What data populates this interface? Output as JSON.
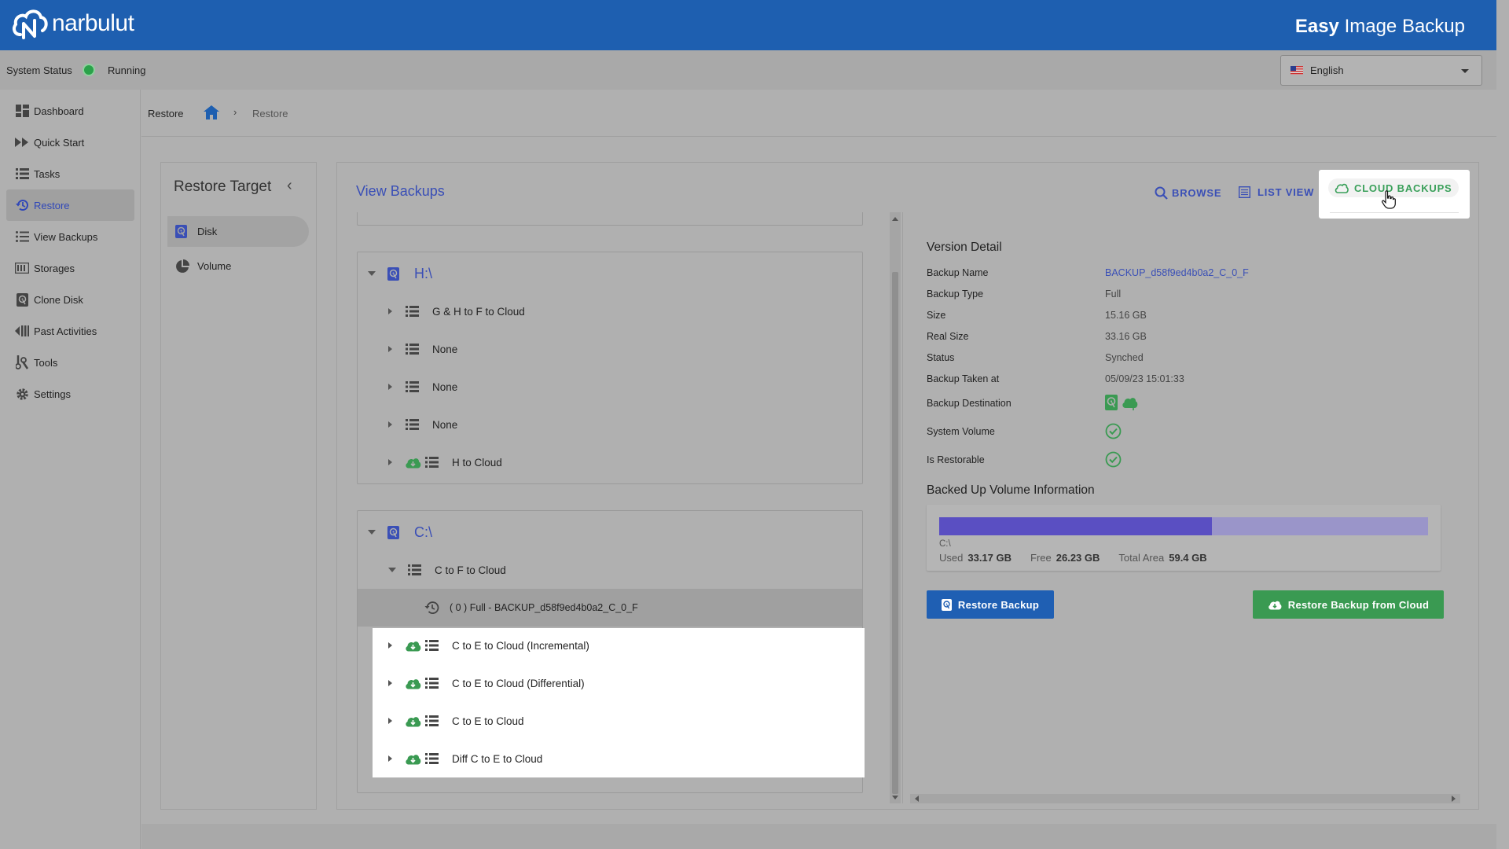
{
  "header": {
    "logo_text": "narbulut",
    "app_title_bold": "Easy",
    "app_title_rest": " Image Backup"
  },
  "status": {
    "label": "System Status",
    "value": "Running",
    "color": "#2aa24a"
  },
  "language": {
    "selected": "English"
  },
  "sidebar": {
    "items": [
      {
        "label": "Dashboard",
        "icon": "dashboard-icon"
      },
      {
        "label": "Quick Start",
        "icon": "fast-forward-icon"
      },
      {
        "label": "Tasks",
        "icon": "list-icon"
      },
      {
        "label": "Restore",
        "icon": "history-icon"
      },
      {
        "label": "View Backups",
        "icon": "list-bullets-icon"
      },
      {
        "label": "Storages",
        "icon": "storage-icon"
      },
      {
        "label": "Clone Disk",
        "icon": "disk-icon"
      },
      {
        "label": "Past Activities",
        "icon": "activity-icon"
      },
      {
        "label": "Tools",
        "icon": "tools-icon"
      },
      {
        "label": "Settings",
        "icon": "gear-icon"
      }
    ]
  },
  "breadcrumb": {
    "title": "Restore",
    "current": "Restore"
  },
  "restore_target": {
    "title": "Restore Target",
    "items": [
      {
        "label": "Disk",
        "icon": "disk-icon"
      },
      {
        "label": "Volume",
        "icon": "pie-icon"
      }
    ]
  },
  "view_backups": {
    "title": "View Backups",
    "browse": "BROWSE",
    "list_view": "LIST VIEW",
    "cloud_backups": "CLOUD BACKUPS"
  },
  "tree": {
    "groups": [
      {
        "drive": "H:\\",
        "tasks": [
          {
            "label": "G & H to F to Cloud",
            "cloud": false
          },
          {
            "label": "None",
            "cloud": false
          },
          {
            "label": "None",
            "cloud": false
          },
          {
            "label": "None",
            "cloud": false
          },
          {
            "label": "H to Cloud",
            "cloud": true
          }
        ]
      },
      {
        "drive": "C:\\",
        "expanded_task": "C to F to Cloud",
        "selected_version": "( 0 ) Full - BACKUP_d58f9ed4b0a2_C_0_F",
        "tasks": [
          {
            "label": "C to E to Cloud (Incremental)",
            "cloud": true
          },
          {
            "label": "C to E to Cloud (Differential)",
            "cloud": true
          },
          {
            "label": "C to E to Cloud",
            "cloud": true
          },
          {
            "label": "Diff C to E to Cloud",
            "cloud": true
          }
        ]
      }
    ]
  },
  "version_detail": {
    "title": "Version Detail",
    "backup_name_label": "Backup Name",
    "backup_name": "BACKUP_d58f9ed4b0a2_C_0_F",
    "backup_type_label": "Backup Type",
    "backup_type": "Full",
    "size_label": "Size",
    "size": "15.16 GB",
    "real_size_label": "Real Size",
    "real_size": "33.16 GB",
    "status_label": "Status",
    "status": "Synched",
    "taken_label": "Backup Taken at",
    "taken": "05/09/23 15:01:33",
    "destination_label": "Backup Destination",
    "system_volume_label": "System Volume",
    "restorable_label": "Is Restorable"
  },
  "volume_info": {
    "title": "Backed Up Volume Information",
    "volume": "C:\\",
    "used_label": "Used",
    "used": "33.17 GB",
    "free_label": "Free",
    "free": "26.23 GB",
    "total_label": "Total Area",
    "total": "59.4 GB",
    "used_fraction": 0.5584
  },
  "actions": {
    "restore": "Restore Backup",
    "restore_cloud": "Restore Backup from Cloud"
  },
  "colors": {
    "primary": "#1e5fb0",
    "accent": "#3a4fb6",
    "success": "#3a9a52"
  }
}
